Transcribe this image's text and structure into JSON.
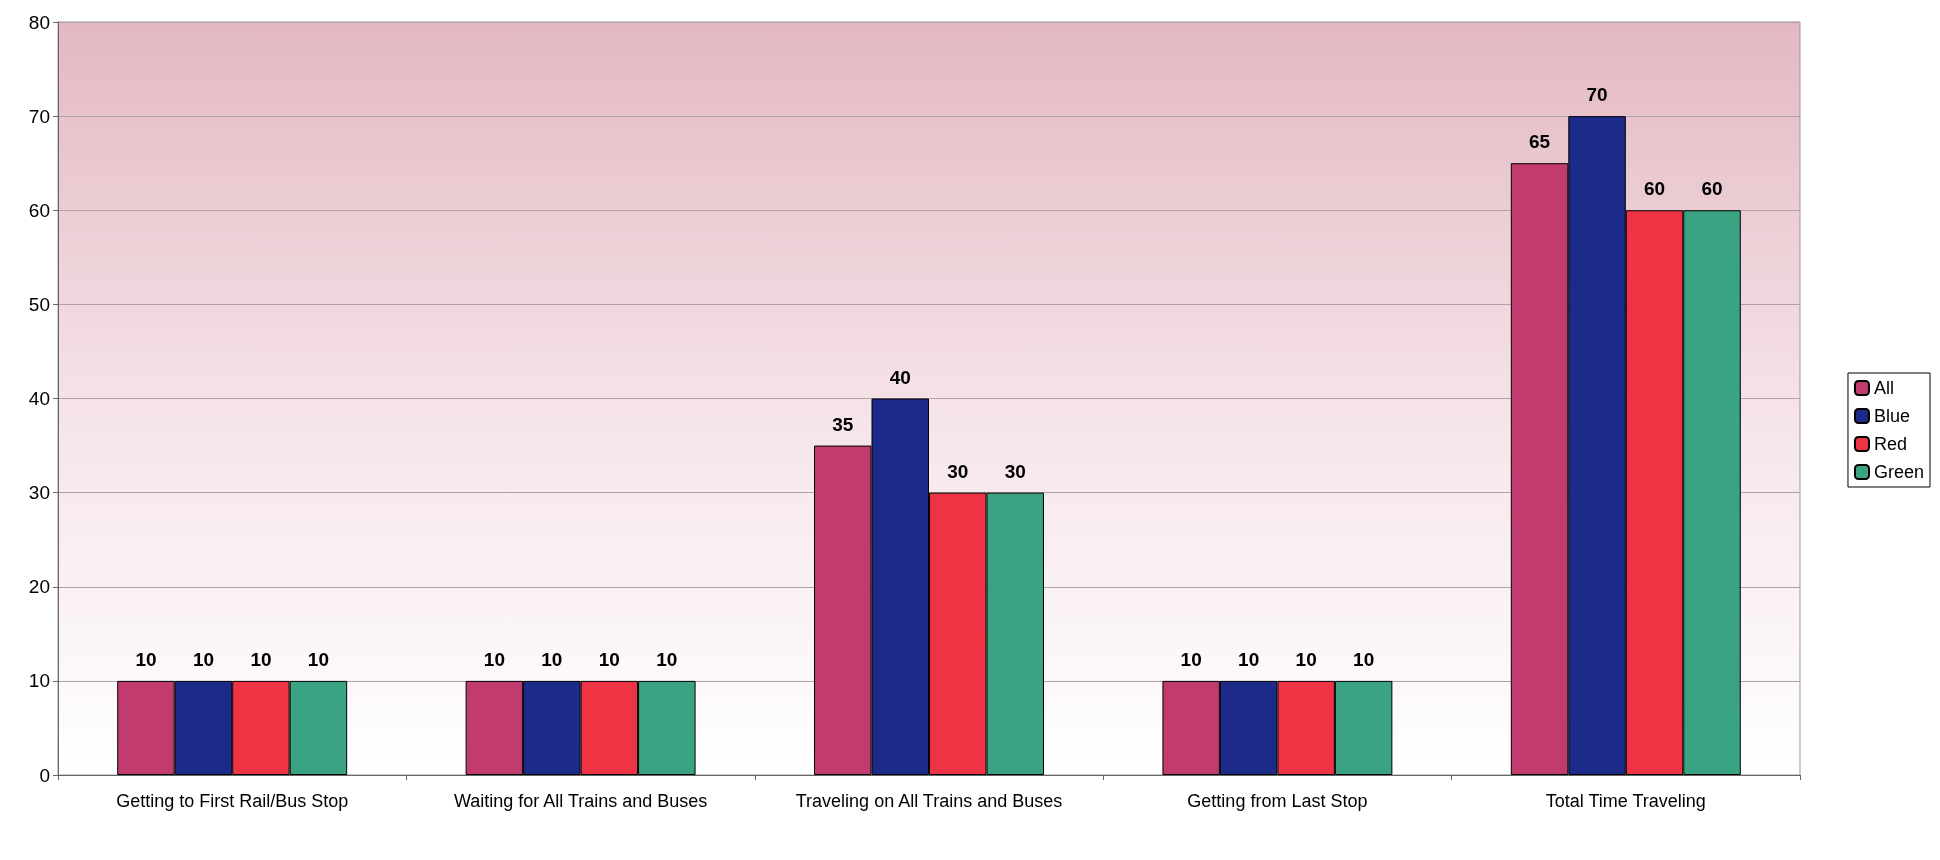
{
  "chart_data": {
    "type": "bar",
    "categories": [
      "Getting to First Rail/Bus Stop",
      "Waiting for All Trains and Buses",
      "Traveling on All Trains and Buses",
      "Getting from Last Stop",
      "Total Time Traveling"
    ],
    "series": [
      {
        "name": "All",
        "color": "#c23b6e",
        "values": [
          10,
          10,
          35,
          10,
          65
        ]
      },
      {
        "name": "Blue",
        "color": "#1c2a8a",
        "values": [
          10,
          10,
          40,
          10,
          70
        ]
      },
      {
        "name": "Red",
        "color": "#ee3344",
        "values": [
          10,
          10,
          30,
          10,
          60
        ]
      },
      {
        "name": "Green",
        "color": "#3aa384",
        "values": [
          10,
          10,
          30,
          10,
          60
        ]
      }
    ],
    "ylim": [
      0,
      80
    ],
    "yticks": [
      0,
      10,
      20,
      30,
      40,
      50,
      60,
      70,
      80
    ],
    "grid": "y",
    "legend": "right",
    "data_labels": true
  }
}
